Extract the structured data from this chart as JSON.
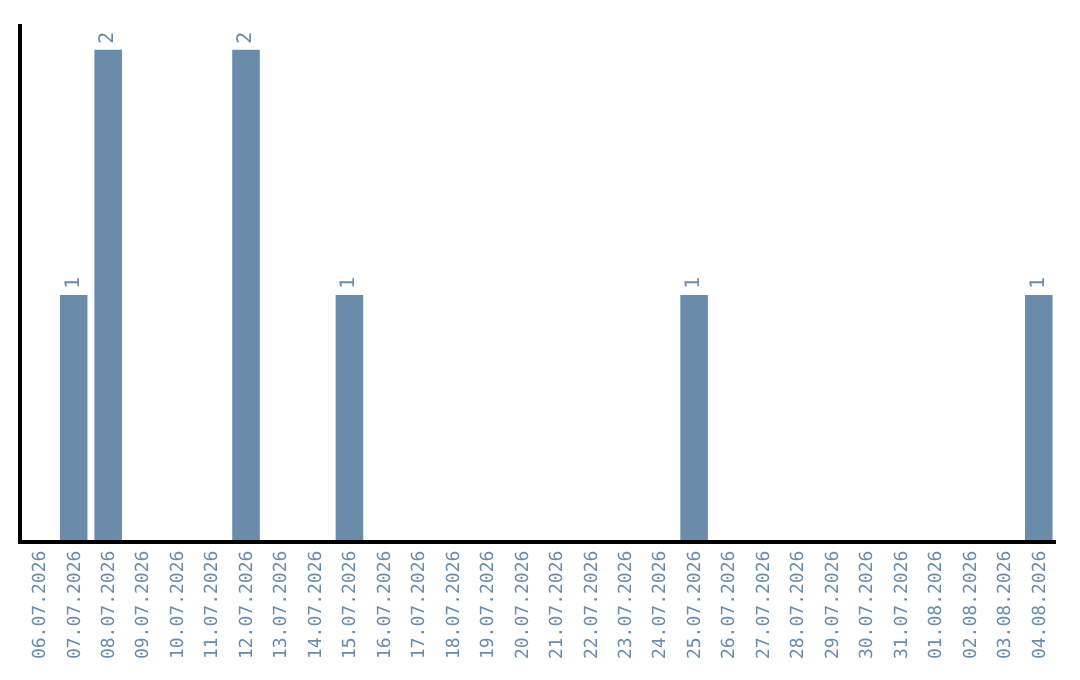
{
  "chart_data": {
    "type": "bar",
    "categories": [
      "06.07.2026",
      "07.07.2026",
      "08.07.2026",
      "09.07.2026",
      "10.07.2026",
      "11.07.2026",
      "12.07.2026",
      "13.07.2026",
      "14.07.2026",
      "15.07.2026",
      "16.07.2026",
      "17.07.2026",
      "18.07.2026",
      "19.07.2026",
      "20.07.2026",
      "21.07.2026",
      "22.07.2026",
      "23.07.2026",
      "24.07.2026",
      "25.07.2026",
      "26.07.2026",
      "27.07.2026",
      "28.07.2026",
      "29.07.2026",
      "30.07.2026",
      "31.07.2026",
      "01.08.2026",
      "02.08.2026",
      "03.08.2026",
      "04.08.2026"
    ],
    "values": [
      0,
      1,
      2,
      0,
      0,
      0,
      2,
      0,
      0,
      1,
      0,
      0,
      0,
      0,
      0,
      0,
      0,
      0,
      0,
      1,
      0,
      0,
      0,
      0,
      0,
      0,
      0,
      0,
      0,
      1
    ],
    "value_labels": [
      null,
      "1",
      "2",
      null,
      null,
      null,
      "2",
      null,
      null,
      "1",
      null,
      null,
      null,
      null,
      null,
      null,
      null,
      null,
      null,
      "1",
      null,
      null,
      null,
      null,
      null,
      null,
      null,
      null,
      null,
      "1"
    ],
    "color": "#6a8caa",
    "legend": false,
    "tick_labels": "x"
  }
}
